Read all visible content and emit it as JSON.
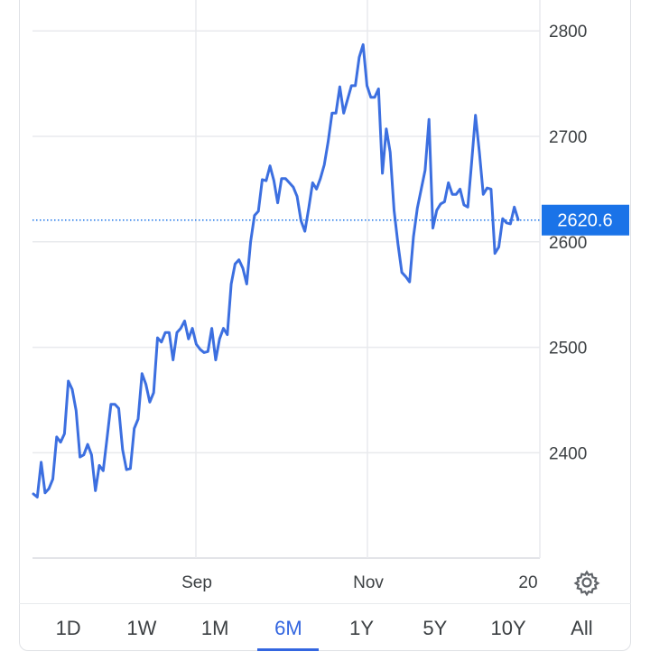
{
  "chart_data": {
    "type": "line",
    "y_ticks": [
      2400,
      2500,
      2600,
      2700,
      2800
    ],
    "x_tick_labels": [
      "Sep",
      "Nov",
      "20"
    ],
    "ylim": [
      2300,
      2820
    ],
    "grid": true,
    "current_value": 2620.6,
    "current_value_label": "2620.6",
    "line_color": "#3c6fe0",
    "accent_color": "#1a73e8",
    "series": [
      {
        "values": [
          2361,
          2358,
          2391,
          2362,
          2366,
          2375,
          2415,
          2410,
          2418,
          2468,
          2460,
          2440,
          2396,
          2398,
          2408,
          2398,
          2364,
          2388,
          2383,
          2414,
          2446,
          2446,
          2442,
          2403,
          2384,
          2385,
          2423,
          2432,
          2475,
          2465,
          2448,
          2457,
          2509,
          2505,
          2514,
          2514,
          2488,
          2514,
          2518,
          2525,
          2508,
          2518,
          2503,
          2498,
          2495,
          2496,
          2518,
          2488,
          2508,
          2518,
          2512,
          2560,
          2579,
          2583,
          2575,
          2560,
          2600,
          2625,
          2629,
          2659,
          2658,
          2672,
          2658,
          2637,
          2660,
          2660,
          2656,
          2652,
          2643,
          2620,
          2610,
          2632,
          2656,
          2650,
          2660,
          2673,
          2695,
          2722,
          2722,
          2747,
          2722,
          2735,
          2748,
          2748,
          2775,
          2787,
          2748,
          2737,
          2737,
          2745,
          2665,
          2707,
          2685,
          2630,
          2598,
          2571,
          2567,
          2562,
          2605,
          2632,
          2650,
          2668,
          2716,
          2613,
          2630,
          2636,
          2638,
          2656,
          2645,
          2645,
          2650,
          2635,
          2633,
          2675,
          2720,
          2685,
          2645,
          2651,
          2650,
          2589,
          2595,
          2622,
          2618,
          2617,
          2633,
          2621
        ]
      }
    ],
    "timeframes": [
      "1D",
      "1W",
      "1M",
      "6M",
      "1Y",
      "5Y",
      "10Y",
      "All"
    ],
    "active_timeframe": "6M"
  }
}
